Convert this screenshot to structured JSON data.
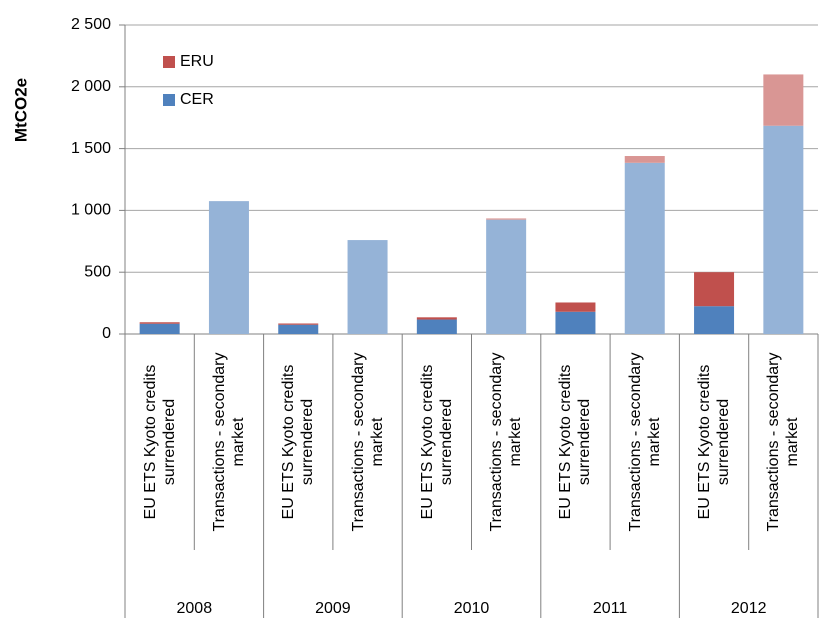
{
  "chart_data": {
    "type": "stacked_bar",
    "y_label": "MtCO2e",
    "categories": [
      "EU ETS Kyoto credits surrendered",
      "Transactions - secondary market",
      "EU ETS Kyoto credits surrendered",
      "Transactions - secondary market",
      "EU ETS Kyoto credits surrendered",
      "Transactions - secondary market",
      "EU ETS Kyoto credits surrendered",
      "Transactions - secondary market",
      "EU ETS Kyoto credits surrendered",
      "Transactions - secondary market"
    ],
    "groups": [
      "2008",
      "2009",
      "2010",
      "2011",
      "2012"
    ],
    "series": [
      {
        "name": "CER",
        "color": "#4f81bd",
        "colors": [
          "#4f81bd",
          "#95b3d7",
          "#4f81bd",
          "#95b3d7",
          "#4f81bd",
          "#95b3d7",
          "#4f81bd",
          "#95b3d7",
          "#4f81bd",
          "#95b3d7"
        ],
        "values": [
          83,
          1075,
          75,
          760,
          117,
          925,
          180,
          1385,
          225,
          1685
        ]
      },
      {
        "name": "ERU",
        "color": "#c0504d",
        "colors": [
          "#c0504d",
          "#d99694",
          "#c0504d",
          "#d99694",
          "#c0504d",
          "#d99694",
          "#c0504d",
          "#d99694",
          "#c0504d",
          "#d99694"
        ],
        "values": [
          12,
          0,
          10,
          0,
          18,
          10,
          75,
          55,
          275,
          415
        ]
      }
    ],
    "ylim": [
      0,
      2500
    ],
    "yticks": [
      0,
      500,
      {
        "value": 1000,
        "label": "1 000"
      },
      {
        "value": 1500,
        "label": "1 500"
      },
      {
        "value": 2000,
        "label": "2 000"
      },
      {
        "value": 2500,
        "label": "2 500"
      }
    ],
    "grid": true
  }
}
